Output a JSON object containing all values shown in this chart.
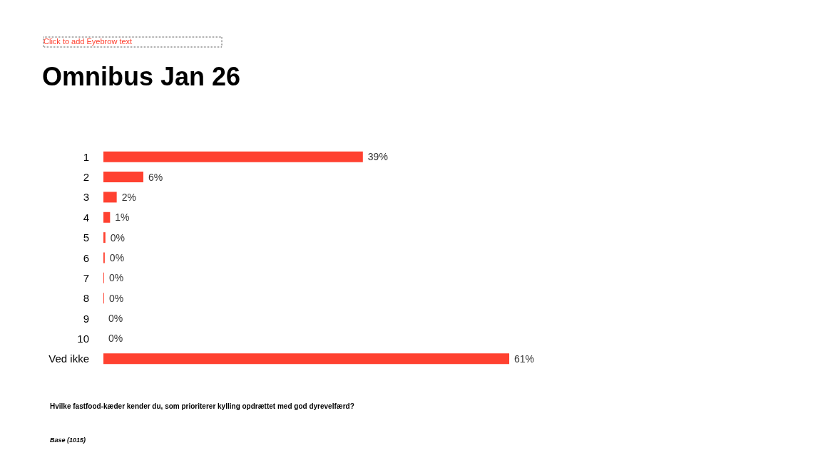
{
  "chart_data": {
    "type": "bar",
    "orientation": "horizontal",
    "title": "Omnibus Jan 26",
    "categories": [
      "1",
      "2",
      "3",
      "4",
      "5",
      "6",
      "7",
      "8",
      "9",
      "10",
      "Ved ikke"
    ],
    "values": [
      39,
      6,
      2,
      1,
      0.3,
      0.2,
      0.1,
      0.1,
      0,
      0,
      61
    ],
    "value_labels": [
      "39%",
      "6%",
      "2%",
      "1%",
      "0%",
      "0%",
      "0%",
      "0%",
      "0%",
      "0%",
      "61%"
    ],
    "color": "#ff4130",
    "annotations": [
      "Click to add Eyebrow text",
      "Hvilke fastfood-kæder kender du, som prioriterer kylling opdrættet med god dyrevelfærd?",
      "Base (1015)"
    ]
  }
}
